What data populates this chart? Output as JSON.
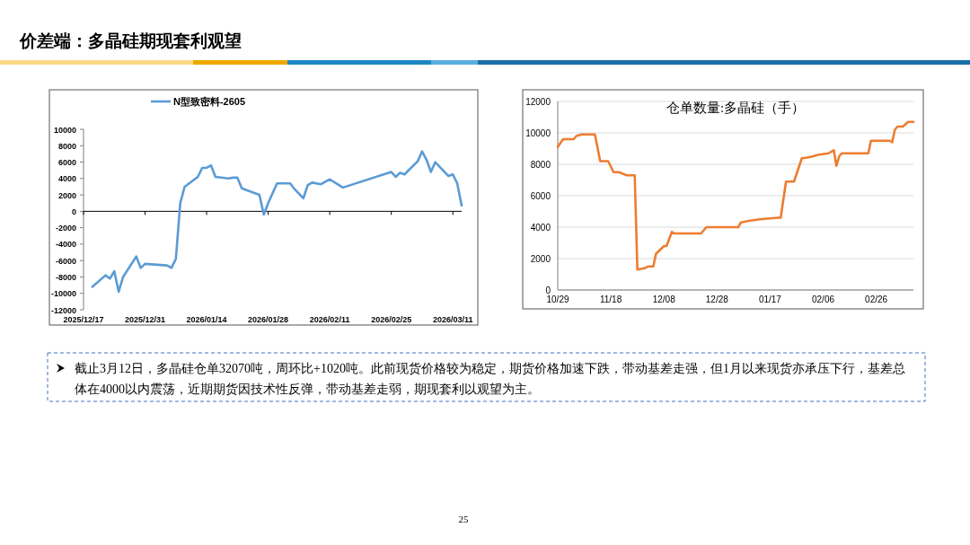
{
  "chart_data": [
    {
      "type": "line",
      "title": "价差端：多晶硅期现套利观望",
      "legend": "top",
      "annotations": [
        "截止3月12日，多晶硅仓单32070吨，周环比+1020吨。此前现货价格较为稳定，期货价格加速下跌，带动基差走强，但1月以来现货亦承压下行，基差总体在4000以内震荡，近期期货因技术性反弹，带动基差走弱，期现套利以观望为主。",
        "25"
      ],
      "x": [
        "2025-12-19",
        "2025-12-22",
        "2025-12-23",
        "2025-12-24",
        "2025-12-25",
        "2025-12-26",
        "2025-12-29",
        "2025-12-30",
        "2025-12-31",
        "2026-01-05",
        "2026-01-06",
        "2026-01-07",
        "2026-01-08",
        "2026-01-09",
        "2026-01-12",
        "2026-01-13",
        "2026-01-14",
        "2026-01-15",
        "2026-01-16",
        "2026-01-19",
        "2026-01-20",
        "2026-01-21",
        "2026-01-22",
        "2026-01-26",
        "2026-01-27",
        "2026-01-28",
        "2026-01-30",
        "2026-01-31",
        "2026-02-02",
        "2026-02-03",
        "2026-02-05",
        "2026-02-06",
        "2026-02-07",
        "2026-02-09",
        "2026-02-11",
        "2026-02-14",
        "2026-02-25",
        "2026-02-26",
        "2026-02-27",
        "2026-02-28",
        "2026-03-03",
        "2026-03-04",
        "2026-03-05",
        "2026-03-06",
        "2026-03-07",
        "2026-03-10",
        "2026-03-11",
        "2026-03-12",
        "2026-03-13"
      ],
      "series": [
        {
          "name": "N型致密料-2605",
          "color": "#5b9bd5",
          "values": [
            -9200,
            -7800,
            -8200,
            -7300,
            -9800,
            -8000,
            -5500,
            -6900,
            -6400,
            -6600,
            -6900,
            -5800,
            1000,
            3000,
            4200,
            5300,
            5300,
            5600,
            4200,
            4000,
            4100,
            4100,
            2800,
            2000,
            -400,
            1000,
            3400,
            3400,
            3400,
            2700,
            1600,
            3200,
            3500,
            3300,
            3900,
            2900,
            4800,
            4200,
            4700,
            4500,
            6100,
            7300,
            6300,
            4800,
            6000,
            4300,
            4500,
            3400,
            700
          ]
        }
      ],
      "xlim": [
        "2025-12-17",
        "2026-03-13"
      ],
      "xticks": [
        {
          "value": "2025-12-17",
          "label": "2025/12/17"
        },
        {
          "value": "2025-12-31",
          "label": "2025/12/31"
        },
        {
          "value": "2026-01-14",
          "label": "2026/01/14"
        },
        {
          "value": "2026-01-28",
          "label": "2026/01/28"
        },
        {
          "value": "2026-02-11",
          "label": "2026/02/11"
        },
        {
          "value": "2026-02-25",
          "label": "2026/02/25"
        },
        {
          "value": "2026-03-11",
          "label": "2026/03/11"
        }
      ],
      "ylim": [
        -12000,
        10000
      ],
      "yticks": [
        -12000,
        -10000,
        -8000,
        -6000,
        -4000,
        -2000,
        0,
        2000,
        4000,
        6000,
        8000,
        10000
      ]
    },
    {
      "type": "line",
      "title": "仓单数量:多晶硅（手）",
      "grid": "y",
      "x": [
        "2025-10-29",
        "2025-10-31",
        "2025-11-04",
        "2025-11-05",
        "2025-11-07",
        "2025-11-12",
        "2025-11-14",
        "2025-11-17",
        "2025-11-19",
        "2025-11-21",
        "2025-11-24",
        "2025-11-27",
        "2025-11-28",
        "2025-12-01",
        "2025-12-02",
        "2025-12-04",
        "2025-12-05",
        "2025-12-08",
        "2025-12-09",
        "2025-12-11",
        "2025-12-12",
        "2025-12-22",
        "2025-12-24",
        "2026-01-05",
        "2026-01-06",
        "2026-01-09",
        "2026-01-13",
        "2026-01-20",
        "2026-01-21",
        "2026-01-23",
        "2026-01-26",
        "2026-01-29",
        "2026-01-30",
        "2026-02-02",
        "2026-02-04",
        "2026-02-08",
        "2026-02-10",
        "2026-02-11",
        "2026-02-12",
        "2026-02-13",
        "2026-02-17",
        "2026-02-20",
        "2026-02-23",
        "2026-02-24",
        "2026-03-03",
        "2026-03-04",
        "2026-03-05",
        "2026-03-06",
        "2026-03-08",
        "2026-03-10",
        "2026-03-12"
      ],
      "series": [
        {
          "color": "#ed7d31",
          "values": [
            9100,
            9600,
            9600,
            9800,
            9900,
            9900,
            8200,
            8200,
            7500,
            7500,
            7300,
            7300,
            1300,
            1400,
            1500,
            1500,
            2300,
            2800,
            2800,
            3700,
            3600,
            3600,
            4000,
            4000,
            4300,
            4400,
            4500,
            4600,
            4600,
            6900,
            6900,
            8400,
            8400,
            8500,
            8600,
            8700,
            8900,
            7900,
            8500,
            8700,
            8700,
            8700,
            8700,
            9500,
            9500,
            9400,
            10200,
            10400,
            10400,
            10700,
            10700
          ]
        }
      ],
      "xlim": [
        "2025-10-29",
        "2026-03-12"
      ],
      "xticks": [
        {
          "value": "2025-10-29",
          "label": "10/29"
        },
        {
          "value": "2025-11-18",
          "label": "11/18"
        },
        {
          "value": "2025-12-08",
          "label": "12/08"
        },
        {
          "value": "2025-12-28",
          "label": "12/28"
        },
        {
          "value": "2026-01-17",
          "label": "01/17"
        },
        {
          "value": "2026-02-06",
          "label": "02/06"
        },
        {
          "value": "2026-02-26",
          "label": "02/26"
        }
      ],
      "ylim": [
        0,
        12000
      ],
      "yticks": [
        0,
        2000,
        4000,
        6000,
        8000,
        10000,
        12000
      ]
    }
  ]
}
